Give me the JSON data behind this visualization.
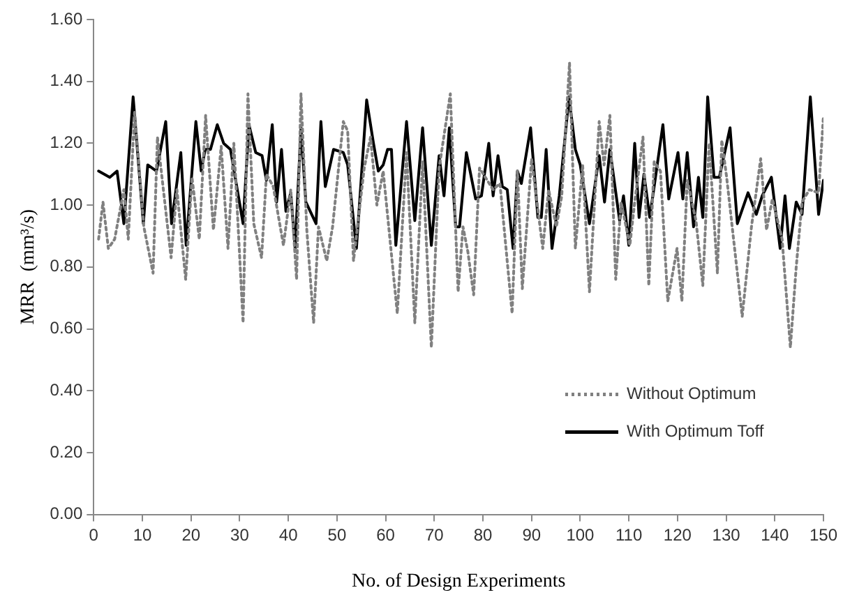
{
  "chart_data": {
    "type": "line",
    "xlabel": "No. of Design Experiments",
    "ylabel": "MRR  (mm³/s)",
    "xlim": [
      0,
      150
    ],
    "xticks": [
      0,
      10,
      20,
      30,
      40,
      50,
      60,
      70,
      80,
      90,
      100,
      110,
      120,
      130,
      140,
      150
    ],
    "ylim": [
      0,
      1.6
    ],
    "yticks": [
      {
        "value": 0,
        "label": "0.00"
      },
      {
        "value": 0.2,
        "label": "0.20"
      },
      {
        "value": 0.4,
        "label": "0.40"
      },
      {
        "value": 0.6,
        "label": "0.60"
      },
      {
        "value": 0.8,
        "label": "0.80"
      },
      {
        "value": 1.0,
        "label": "1.00"
      },
      {
        "value": 1.2,
        "label": "1.20"
      },
      {
        "value": 1.4,
        "label": "1.40"
      },
      {
        "value": 1.6,
        "label": "1.60"
      }
    ],
    "grid": false,
    "legend": "bottom right",
    "marker": "none",
    "series": [
      {
        "name": "Without Optimum",
        "color": "#808080",
        "line_style": "dotted",
        "x": [
          1,
          1.9,
          3,
          4.3,
          6.2,
          7.1,
          8.4,
          10.3,
          12.2,
          13.1,
          14.1,
          15.9,
          17.1,
          18.9,
          20.2,
          21.7,
          23,
          24.6,
          26.2,
          27.6,
          28.8,
          30.7,
          31.7,
          32.9,
          34.5,
          35.5,
          36.9,
          39,
          40.5,
          41.7,
          42.6,
          43.8,
          45.2,
          46.2,
          47.9,
          49.1,
          51.3,
          52.2,
          53.4,
          55.6,
          56.9,
          58.2,
          59.5,
          62.4,
          64.3,
          66,
          67.6,
          69.4,
          71,
          73.3,
          74.9,
          75.9,
          76.9,
          78.1,
          79.3,
          82.1,
          83.5,
          86,
          87.1,
          88.1,
          90,
          92.3,
          93.5,
          95.1,
          96.2,
          97.8,
          99,
          100.5,
          101.9,
          103.9,
          104.9,
          106.1,
          107.3,
          108.4,
          110.2,
          111.2,
          112.9,
          114.1,
          115.2,
          116.5,
          118,
          119.9,
          120.9,
          122,
          123.8,
          125.2,
          126.5,
          128.2,
          129.1,
          130.1,
          133.3,
          135.2,
          137.1,
          138.3,
          139.5,
          141.5,
          143.2,
          144.4,
          145.6,
          147.1,
          149,
          150
        ],
        "values": [
          0.89,
          1.01,
          0.86,
          0.89,
          1.05,
          0.89,
          1.3,
          0.93,
          0.78,
          1.22,
          1.08,
          0.83,
          1.05,
          0.76,
          1.09,
          0.89,
          1.29,
          0.92,
          1.19,
          0.86,
          1.2,
          0.62,
          1.36,
          0.94,
          0.83,
          1.1,
          1.06,
          0.87,
          1.05,
          0.76,
          1.36,
          0.92,
          0.62,
          0.93,
          0.82,
          0.93,
          1.27,
          1.24,
          0.82,
          1.12,
          1.22,
          1.0,
          1.11,
          0.65,
          1.17,
          0.62,
          1.14,
          0.54,
          1.12,
          1.36,
          0.72,
          0.93,
          0.85,
          0.71,
          1.12,
          1.05,
          1.07,
          0.65,
          1.11,
          0.73,
          1.15,
          0.86,
          1.05,
          0.93,
          1.03,
          1.46,
          0.86,
          1.13,
          0.72,
          1.27,
          1.13,
          1.29,
          0.76,
          1.01,
          0.87,
          1.01,
          1.22,
          0.74,
          1.14,
          1.11,
          0.69,
          0.86,
          0.69,
          1.08,
          0.95,
          0.74,
          1.2,
          0.78,
          1.21,
          1.09,
          0.64,
          0.93,
          1.15,
          0.92,
          1.02,
          0.89,
          0.54,
          0.8,
          1.01,
          1.05,
          1.04,
          1.29
        ]
      },
      {
        "name": "With Optimum Toff",
        "color": "#000000",
        "line_style": "solid",
        "x": [
          1,
          3.3,
          4.8,
          6.2,
          8.1,
          10.2,
          11.1,
          12.9,
          14.8,
          16,
          17.9,
          19,
          21,
          22.1,
          22.9,
          24,
          25.4,
          26.7,
          28.1,
          30.7,
          31.9,
          33.3,
          34.6,
          35.5,
          36.7,
          37.6,
          38.6,
          39.5,
          40.5,
          41.4,
          42.6,
          43.6,
          45.7,
          46.7,
          47.6,
          49.3,
          51.3,
          52.2,
          54,
          56.1,
          57.5,
          58.5,
          59.5,
          60.4,
          61.2,
          62.1,
          64.3,
          66,
          67.6,
          69.4,
          71,
          72,
          73.1,
          74.4,
          75.2,
          76.6,
          78.5,
          79.7,
          81.2,
          82.1,
          83.1,
          84,
          85,
          86.2,
          87.1,
          87.9,
          89.8,
          91.3,
          92,
          93,
          94.2,
          95.7,
          97.7,
          99,
          100,
          101.9,
          103.9,
          105,
          106.1,
          108.1,
          108.9,
          110,
          111.2,
          112.1,
          113.1,
          114.3,
          117,
          118.2,
          120.1,
          121.1,
          122,
          123.3,
          124.3,
          125.2,
          126.2,
          127.5,
          128.6,
          130.8,
          132.3,
          134.5,
          136.2,
          137.4,
          139.3,
          141.1,
          142.1,
          143,
          144.4,
          145.6,
          147.3,
          149,
          150
        ],
        "values": [
          1.11,
          1.09,
          1.11,
          0.94,
          1.35,
          0.94,
          1.13,
          1.11,
          1.27,
          0.94,
          1.17,
          0.87,
          1.27,
          1.11,
          1.18,
          1.18,
          1.26,
          1.2,
          1.18,
          0.94,
          1.26,
          1.17,
          1.16,
          1.08,
          1.26,
          1.01,
          1.18,
          0.98,
          1.04,
          0.86,
          1.25,
          1.01,
          0.94,
          1.27,
          1.06,
          1.18,
          1.17,
          1.13,
          0.86,
          1.34,
          1.2,
          1.11,
          1.13,
          1.18,
          1.18,
          0.87,
          1.27,
          0.95,
          1.25,
          0.87,
          1.16,
          1.03,
          1.25,
          0.93,
          0.93,
          1.17,
          1.02,
          1.03,
          1.2,
          1.03,
          1.16,
          1.06,
          1.05,
          0.86,
          1.11,
          1.07,
          1.25,
          0.96,
          0.96,
          1.18,
          0.86,
          1.03,
          1.35,
          1.18,
          1.13,
          0.94,
          1.16,
          1.01,
          1.18,
          0.95,
          1.03,
          0.87,
          1.2,
          0.96,
          1.1,
          0.96,
          1.26,
          1.02,
          1.17,
          1.02,
          1.17,
          0.93,
          1.09,
          0.96,
          1.35,
          1.09,
          1.09,
          1.25,
          0.94,
          1.04,
          0.97,
          1.03,
          1.09,
          0.86,
          1.03,
          0.86,
          1.01,
          0.97,
          1.35,
          0.97,
          1.08
        ]
      }
    ]
  }
}
